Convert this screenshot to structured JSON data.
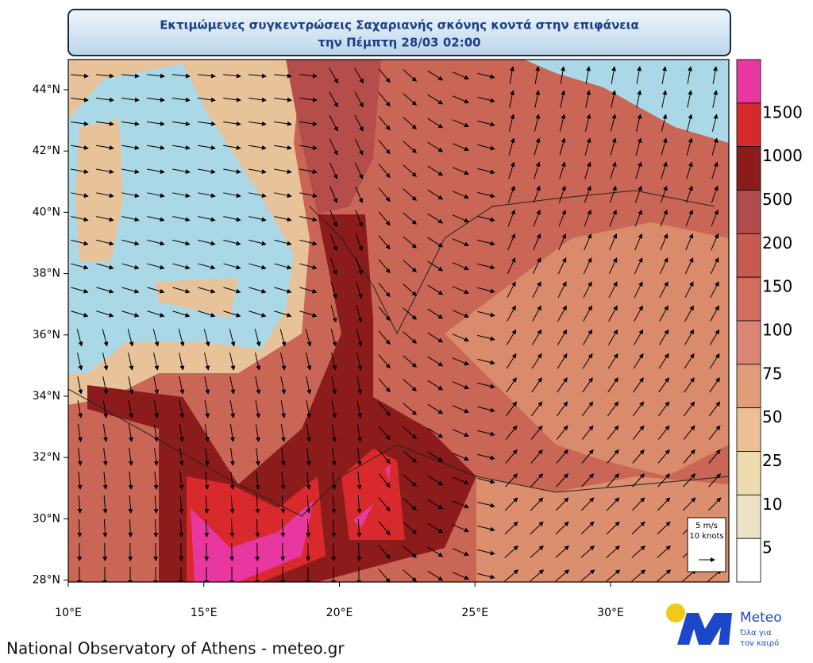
{
  "title_line1": "Εκτιμώμενες συγκεντρώσεις Σαχαριανής σκόνης κοντά στην επιφάνεια",
  "title_line2": "την Πέμπτη 28/03 02:00",
  "lat_ticks": [
    {
      "value": 44,
      "label": "44°N"
    },
    {
      "value": 42,
      "label": "42°N"
    },
    {
      "value": 40,
      "label": "40°N"
    },
    {
      "value": 38,
      "label": "38°N"
    },
    {
      "value": 36,
      "label": "36°N"
    },
    {
      "value": 34,
      "label": "34°N"
    },
    {
      "value": 32,
      "label": "32°N"
    },
    {
      "value": 30,
      "label": "30°N"
    },
    {
      "value": 28,
      "label": "28°N"
    }
  ],
  "lon_ticks": [
    {
      "value": 10,
      "label": "10°E"
    },
    {
      "value": 15,
      "label": "15°E"
    },
    {
      "value": 20,
      "label": "20°E"
    },
    {
      "value": 25,
      "label": "25°E"
    },
    {
      "value": 30,
      "label": "30°E"
    }
  ],
  "colorbar": {
    "levels": [
      1500,
      1000,
      500,
      200,
      150,
      100,
      75,
      50,
      25,
      10,
      5
    ],
    "colors": [
      "#e8389f",
      "#d82a2c",
      "#8c1b1b",
      "#b14c4c",
      "#c75b50",
      "#d36e5e",
      "#da8576",
      "#e19d78",
      "#ecbf96",
      "#efdcae",
      "#ebe3c3",
      "#ffffff"
    ]
  },
  "reference_vector": {
    "speed": "5 m/s",
    "knots": "10 knots"
  },
  "footer": "National Observatory of Athens - meteo.gr",
  "logo": {
    "name": "Meteo",
    "tagline1": "Όλα για",
    "tagline2": "τον καιρό"
  }
}
